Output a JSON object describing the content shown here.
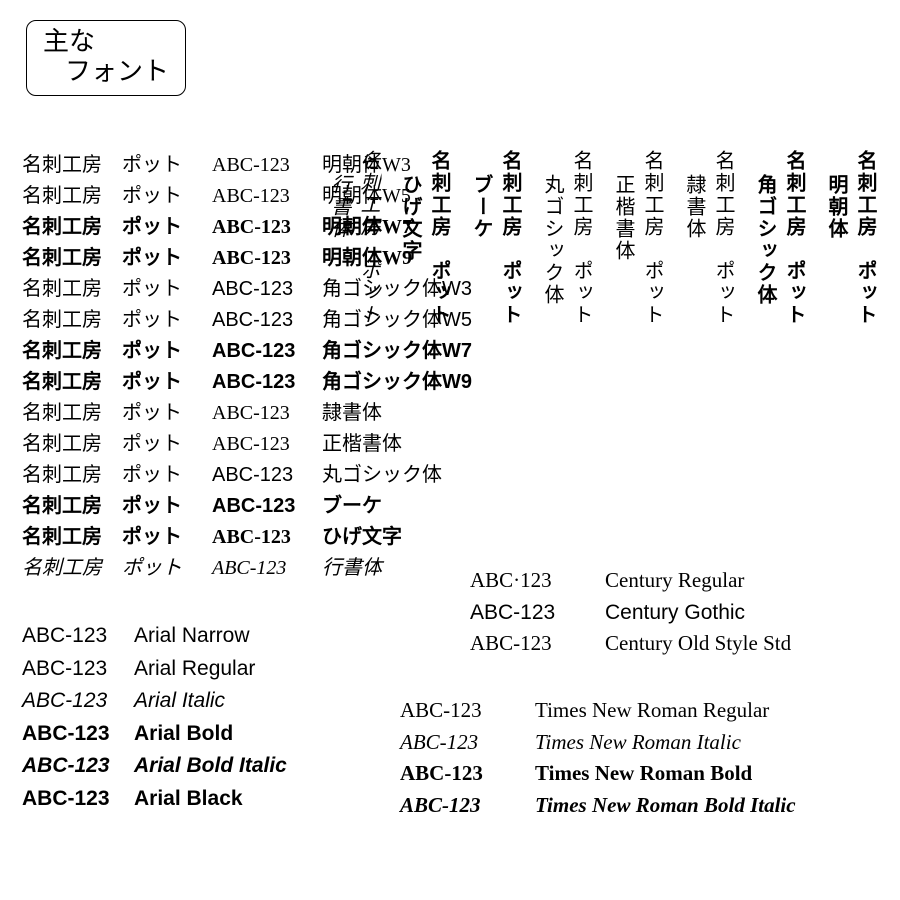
{
  "title": {
    "line1": "主な",
    "line2": "フォント"
  },
  "jp_sample_text": "名刺工房　ポット",
  "jp_code": "ABC-123",
  "jp_rows": [
    {
      "name": "明朝体W3",
      "cls": "mincho w3"
    },
    {
      "name": "明朝体W5",
      "cls": "mincho w5"
    },
    {
      "name": "明朝体W7",
      "cls": "mincho w7"
    },
    {
      "name": "明朝体W9",
      "cls": "mincho w9"
    },
    {
      "name": "角ゴシック体W3",
      "cls": "gothic w3"
    },
    {
      "name": "角ゴシック体W5",
      "cls": "gothic w5"
    },
    {
      "name": "角ゴシック体W7",
      "cls": "gothic w7"
    },
    {
      "name": "角ゴシック体W9",
      "cls": "gothic w9"
    },
    {
      "name": "隷書体",
      "cls": "mincho w5"
    },
    {
      "name": "正楷書体",
      "cls": "mincho w5"
    },
    {
      "name": "丸ゴシック体",
      "cls": "maru w5"
    },
    {
      "name": "ブーケ",
      "cls": "maru w7"
    },
    {
      "name": "ひげ文字",
      "cls": "hvybrush"
    },
    {
      "name": "行書体",
      "cls": "cursive"
    }
  ],
  "vertical_sample_text": "名刺工房　ポット",
  "vertical_cols": [
    {
      "name": "明朝体",
      "cls": "mincho w7"
    },
    {
      "name": "角ゴシック体",
      "cls": "gothic w7"
    },
    {
      "name": "隷書体",
      "cls": "mincho w5"
    },
    {
      "name": "正楷書体",
      "cls": "mincho w5"
    },
    {
      "name": "丸ゴシック体",
      "cls": "maru w5"
    },
    {
      "name": "ブーケ",
      "cls": "maru w7"
    },
    {
      "name": "ひげ文字",
      "cls": "hvybrush"
    },
    {
      "name": "行書体",
      "cls": "cursive"
    }
  ],
  "arial_code": "ABC-123",
  "arial": [
    {
      "name": "Arial Narrow",
      "cls": "arial-narrow"
    },
    {
      "name": "Arial Regular",
      "cls": "arial-reg"
    },
    {
      "name": "Arial Italic",
      "cls": "arial-it"
    },
    {
      "name": "Arial Bold",
      "cls": "arial-bold"
    },
    {
      "name": "Arial Bold Italic",
      "cls": "arial-bi"
    },
    {
      "name": "Arial Black",
      "cls": "arial-black"
    }
  ],
  "century_code_dot": "ABC·123",
  "century_code": "ABC-123",
  "century": [
    {
      "name": "Century Regular",
      "cls": "century-reg",
      "code": "ABC·123"
    },
    {
      "name": "Century Gothic",
      "cls": "century-gothic",
      "code": "ABC-123"
    },
    {
      "name": "Century Old Style Std",
      "cls": "century-old",
      "code": "ABC-123"
    }
  ],
  "times_code": "ABC-123",
  "times": [
    {
      "name": "Times New Roman Regular",
      "cls": "tnr-reg"
    },
    {
      "name": "Times New Roman Italic",
      "cls": "tnr-it"
    },
    {
      "name": "Times New Roman Bold",
      "cls": "tnr-b"
    },
    {
      "name": "Times New Roman Bold Italic",
      "cls": "tnr-bi"
    }
  ],
  "colors": {
    "text": "#000000",
    "bg": "#ffffff",
    "border": "#000000"
  },
  "typography": {
    "title_fontsize": 26,
    "row_fontsize": 20,
    "latin_fontsize": 21
  }
}
